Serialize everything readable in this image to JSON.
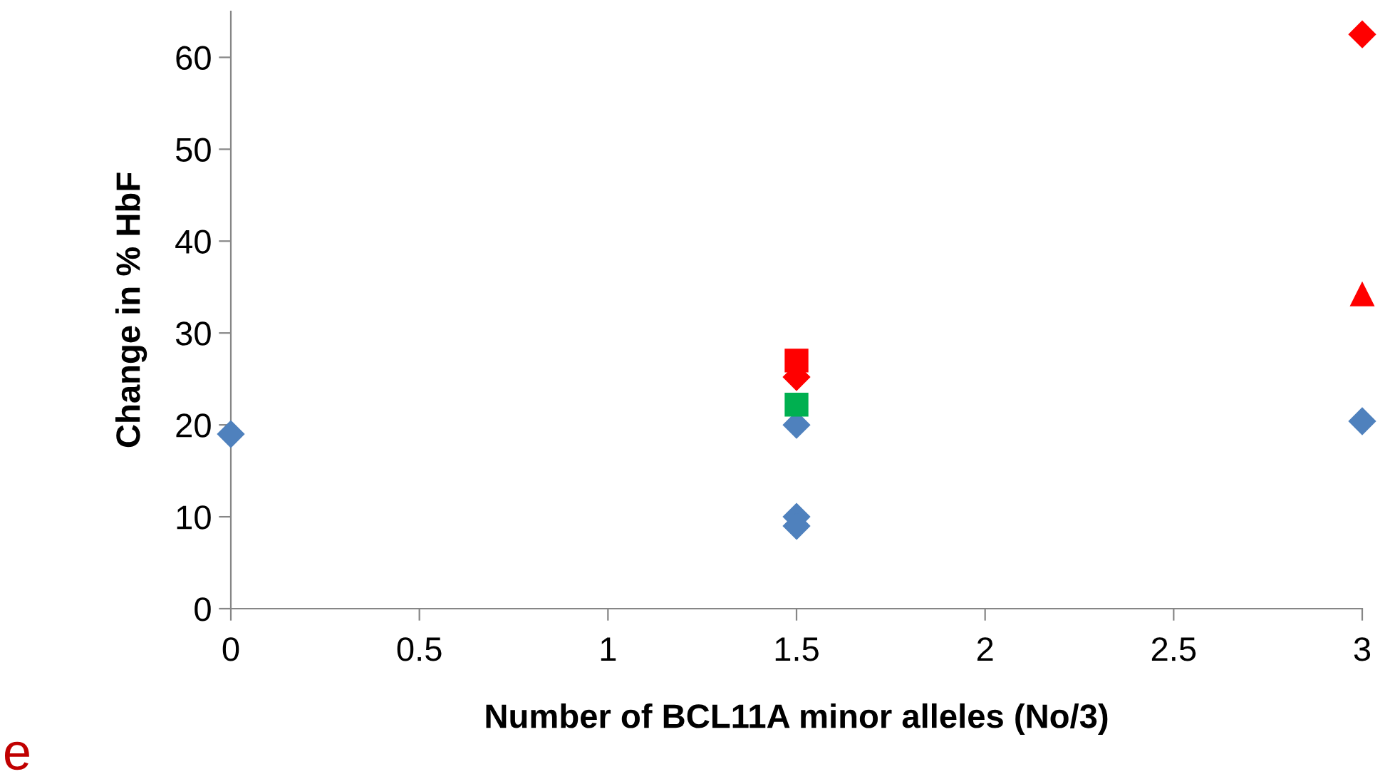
{
  "chart_data": {
    "type": "scatter",
    "xlabel": "Number of BCL11A minor alleles (No/3)",
    "ylabel": "Change in % HbF",
    "xlim": [
      0,
      3
    ],
    "xticks": [
      0,
      0.5,
      1,
      1.5,
      2,
      2.5,
      3
    ],
    "ylim": [
      0,
      65
    ],
    "yticks": [
      0,
      10,
      20,
      30,
      40,
      50,
      60
    ],
    "grid": false,
    "legend": false,
    "series": [
      {
        "color": "#4f81bd",
        "marker": "diamond",
        "x": [
          0,
          1.5,
          1.5,
          1.5,
          3
        ],
        "values": [
          19,
          20,
          10,
          9,
          20.4
        ]
      },
      {
        "color": "#00b050",
        "marker": "square",
        "x": [
          1.5
        ],
        "values": [
          22.2
        ]
      },
      {
        "color": "#ff0000",
        "marker": "diamond",
        "x": [
          1.5
        ],
        "values": [
          25.2
        ]
      },
      {
        "color": "#ff0000",
        "marker": "square",
        "x": [
          1.5
        ],
        "values": [
          27
        ]
      },
      {
        "color": "#ff0000",
        "marker": "triangle",
        "x": [
          3
        ],
        "values": [
          34.2
        ]
      },
      {
        "color": "#ff0000",
        "marker": "diamond",
        "x": [
          3
        ],
        "values": [
          62.5
        ]
      }
    ],
    "annotations": [
      "e"
    ]
  }
}
